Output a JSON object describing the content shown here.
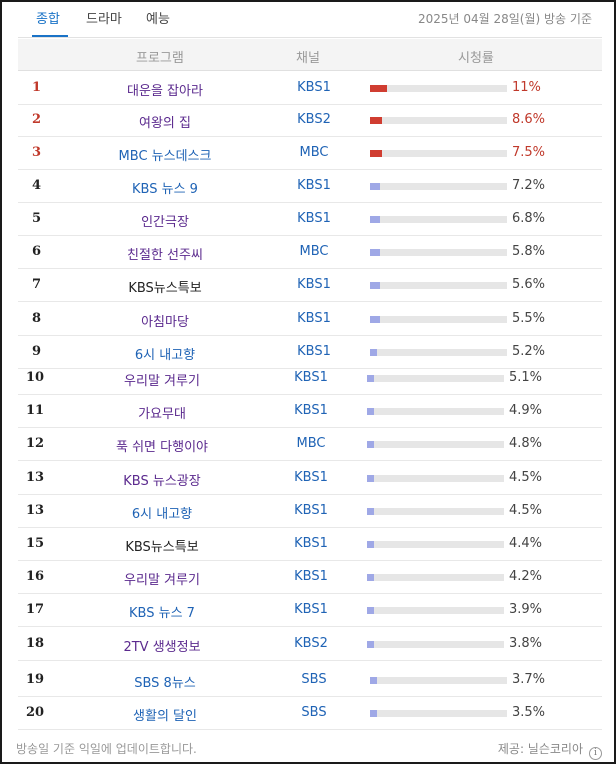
{
  "tabs": [
    {
      "label": "종합",
      "active": true
    },
    {
      "label": "드라마",
      "active": false
    },
    {
      "label": "예능",
      "active": false
    }
  ],
  "date_label": "2025년 04월 28일(월) 방송 기준",
  "columns": {
    "program": "프로그램",
    "channel": "채널",
    "rating": "시청률"
  },
  "rows": [
    {
      "rank": "1",
      "program": "대운을 잡아라",
      "channel": "KBS1",
      "rating": "11%",
      "value": 11,
      "top": true,
      "color": "purple"
    },
    {
      "rank": "2",
      "program": "여왕의 집",
      "channel": "KBS2",
      "rating": "8.6%",
      "value": 8.6,
      "top": true,
      "color": "purple"
    },
    {
      "rank": "3",
      "program": "MBC 뉴스데스크",
      "channel": "MBC",
      "rating": "7.5%",
      "value": 7.5,
      "top": true,
      "color": "blue"
    },
    {
      "rank": "4",
      "program": "KBS 뉴스 9",
      "channel": "KBS1",
      "rating": "7.2%",
      "value": 7.2,
      "top": false,
      "color": "blue"
    },
    {
      "rank": "5",
      "program": "인간극장",
      "channel": "KBS1",
      "rating": "6.8%",
      "value": 6.8,
      "top": false,
      "color": "purple"
    },
    {
      "rank": "6",
      "program": "친절한 선주씨",
      "channel": "MBC",
      "rating": "5.8%",
      "value": 5.8,
      "top": false,
      "color": "purple"
    },
    {
      "rank": "7",
      "program": "KBS뉴스특보",
      "channel": "KBS1",
      "rating": "5.6%",
      "value": 5.6,
      "top": false,
      "color": "black"
    },
    {
      "rank": "8",
      "program": "아침마당",
      "channel": "KBS1",
      "rating": "5.5%",
      "value": 5.5,
      "top": false,
      "color": "purple"
    },
    {
      "rank": "9",
      "program": "6시 내고향",
      "channel": "KBS1",
      "rating": "5.2%",
      "value": 5.2,
      "top": false,
      "color": "blue"
    },
    {
      "rank": "10",
      "program": "우리말 겨루기",
      "channel": "KBS1",
      "rating": "5.1%",
      "value": 5.1,
      "top": false,
      "color": "purple"
    },
    {
      "rank": "11",
      "program": "가요무대",
      "channel": "KBS1",
      "rating": "4.9%",
      "value": 4.9,
      "top": false,
      "color": "purple"
    },
    {
      "rank": "12",
      "program": "푹 쉬면 다행이야",
      "channel": "MBC",
      "rating": "4.8%",
      "value": 4.8,
      "top": false,
      "color": "purple"
    },
    {
      "rank": "13",
      "program": "KBS 뉴스광장",
      "channel": "KBS1",
      "rating": "4.5%",
      "value": 4.5,
      "top": false,
      "color": "purple"
    },
    {
      "rank": "13",
      "program": "6시 내고향",
      "channel": "KBS1",
      "rating": "4.5%",
      "value": 4.5,
      "top": false,
      "color": "blue"
    },
    {
      "rank": "15",
      "program": "KBS뉴스특보",
      "channel": "KBS1",
      "rating": "4.4%",
      "value": 4.4,
      "top": false,
      "color": "black"
    },
    {
      "rank": "16",
      "program": "우리말 겨루기",
      "channel": "KBS1",
      "rating": "4.2%",
      "value": 4.2,
      "top": false,
      "color": "purple"
    },
    {
      "rank": "17",
      "program": "KBS 뉴스 7",
      "channel": "KBS1",
      "rating": "3.9%",
      "value": 3.9,
      "top": false,
      "color": "blue"
    },
    {
      "rank": "18",
      "program": "2TV 생생정보",
      "channel": "KBS2",
      "rating": "3.8%",
      "value": 3.8,
      "top": false,
      "color": "purple"
    },
    {
      "rank": "19",
      "program": "SBS 8뉴스",
      "channel": "SBS",
      "rating": "3.7%",
      "value": 3.7,
      "top": false,
      "color": "blue"
    },
    {
      "rank": "20",
      "program": "생활의 달인",
      "channel": "SBS",
      "rating": "3.5%",
      "value": 3.5,
      "top": false,
      "color": "blue"
    }
  ],
  "footer": {
    "note": "방송일 기준 익일에 업데이트합니다.",
    "provider": "제공: 닐슨코리아"
  },
  "colors": {
    "accent": "#1a73c7",
    "top_bar": "#d03d31",
    "bar": "#9fa8e6"
  }
}
